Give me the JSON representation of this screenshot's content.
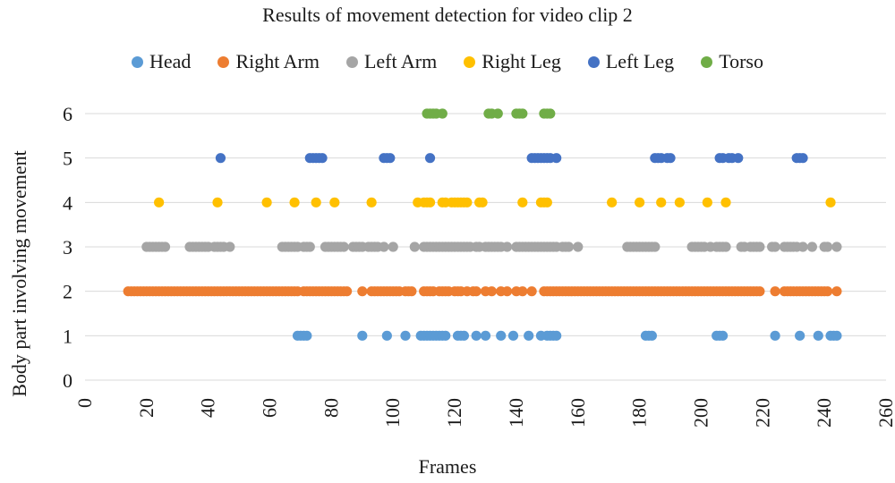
{
  "chart_data": {
    "type": "scatter",
    "title": "Results of movement detection for video clip 2",
    "xlabel": "Frames",
    "ylabel": "Body part involving movement",
    "xlim": [
      0,
      260
    ],
    "ylim": [
      0,
      6
    ],
    "x_ticks": [
      "0",
      "20",
      "40",
      "60",
      "80",
      "100",
      "120",
      "140",
      "160",
      "180",
      "200",
      "220",
      "240",
      "260"
    ],
    "y_ticks": [
      "0",
      "1",
      "2",
      "3",
      "4",
      "5",
      "6"
    ],
    "grid": "horizontal",
    "legend_position": "top",
    "series": [
      {
        "name": "Head",
        "color": "#5B9BD5",
        "y": 1,
        "x": [
          69,
          70,
          71,
          72,
          90,
          98,
          104,
          109,
          110,
          111,
          112,
          113,
          114,
          115,
          116,
          117,
          121,
          122,
          123,
          127,
          130,
          135,
          139,
          144,
          148,
          150,
          151,
          152,
          153,
          182,
          183,
          184,
          205,
          206,
          207,
          224,
          232,
          238,
          242,
          243,
          244
        ]
      },
      {
        "name": "Right Arm",
        "color": "#ED7D31",
        "y": 2,
        "x": [
          14,
          15,
          16,
          17,
          18,
          19,
          20,
          21,
          22,
          23,
          24,
          25,
          26,
          27,
          28,
          29,
          30,
          31,
          32,
          33,
          34,
          35,
          36,
          37,
          38,
          39,
          40,
          41,
          42,
          43,
          44,
          45,
          46,
          47,
          48,
          49,
          50,
          51,
          52,
          53,
          54,
          55,
          56,
          57,
          58,
          59,
          60,
          61,
          62,
          63,
          64,
          65,
          66,
          67,
          68,
          69,
          71,
          72,
          73,
          74,
          75,
          76,
          77,
          78,
          79,
          80,
          81,
          82,
          83,
          84,
          85,
          90,
          93,
          94,
          95,
          96,
          97,
          98,
          99,
          100,
          101,
          102,
          104,
          105,
          106,
          110,
          111,
          112,
          113,
          115,
          116,
          117,
          118,
          120,
          121,
          122,
          124,
          126,
          127,
          130,
          132,
          135,
          137,
          140,
          142,
          145,
          149,
          150,
          151,
          152,
          153,
          154,
          155,
          156,
          157,
          158,
          159,
          160,
          161,
          162,
          163,
          164,
          165,
          166,
          167,
          168,
          169,
          170,
          171,
          172,
          173,
          174,
          175,
          176,
          177,
          178,
          179,
          180,
          181,
          182,
          183,
          184,
          185,
          186,
          187,
          188,
          189,
          190,
          191,
          192,
          193,
          194,
          195,
          196,
          197,
          198,
          199,
          200,
          201,
          202,
          203,
          204,
          205,
          206,
          207,
          208,
          209,
          210,
          211,
          212,
          213,
          214,
          215,
          216,
          217,
          218,
          219,
          224,
          227,
          228,
          229,
          230,
          231,
          232,
          233,
          234,
          235,
          236,
          237,
          238,
          239,
          240,
          241,
          244
        ]
      },
      {
        "name": "Left Arm",
        "color": "#A5A5A5",
        "y": 3,
        "x": [
          20,
          21,
          22,
          23,
          24,
          25,
          26,
          34,
          35,
          36,
          37,
          38,
          39,
          40,
          42,
          43,
          44,
          45,
          47,
          64,
          65,
          66,
          67,
          68,
          69,
          71,
          72,
          73,
          78,
          79,
          80,
          81,
          82,
          83,
          84,
          87,
          88,
          89,
          90,
          92,
          93,
          94,
          95,
          97,
          100,
          107,
          110,
          111,
          112,
          113,
          114,
          115,
          116,
          117,
          118,
          119,
          120,
          121,
          122,
          123,
          124,
          125,
          127,
          128,
          130,
          131,
          132,
          133,
          134,
          135,
          137,
          140,
          141,
          142,
          143,
          144,
          145,
          146,
          147,
          148,
          149,
          150,
          151,
          152,
          153,
          155,
          156,
          157,
          160,
          176,
          177,
          178,
          179,
          180,
          181,
          182,
          183,
          184,
          185,
          197,
          198,
          199,
          200,
          201,
          203,
          205,
          206,
          207,
          208,
          213,
          214,
          216,
          217,
          218,
          219,
          223,
          224,
          227,
          228,
          229,
          230,
          231,
          233,
          236,
          240,
          241,
          244
        ]
      },
      {
        "name": "Right Leg",
        "color": "#FFC000",
        "y": 4,
        "x": [
          24,
          43,
          59,
          68,
          75,
          81,
          93,
          108,
          110,
          111,
          112,
          116,
          117,
          119,
          120,
          121,
          122,
          123,
          124,
          128,
          129,
          142,
          148,
          149,
          150,
          171,
          180,
          187,
          193,
          202,
          208,
          242
        ]
      },
      {
        "name": "Left Leg",
        "color": "#4472C4",
        "y": 5,
        "x": [
          44,
          73,
          74,
          75,
          76,
          77,
          97,
          98,
          99,
          112,
          145,
          146,
          147,
          148,
          149,
          150,
          151,
          153,
          185,
          186,
          187,
          189,
          190,
          206,
          207,
          209,
          210,
          212,
          231,
          232,
          233
        ]
      },
      {
        "name": "Torso",
        "color": "#70AD47",
        "y": 6,
        "x": [
          111,
          112,
          113,
          114,
          116,
          131,
          132,
          134,
          140,
          141,
          142,
          149,
          150,
          151
        ]
      }
    ]
  }
}
